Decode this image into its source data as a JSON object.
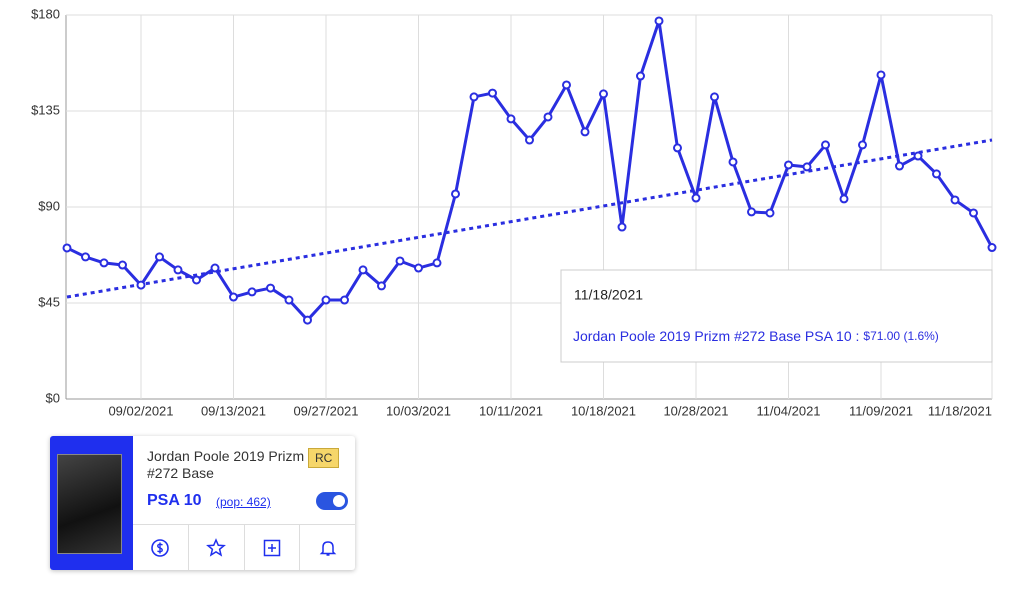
{
  "chart_data": {
    "type": "line",
    "categories": [
      null,
      null,
      null,
      null,
      "09/02/2021",
      null,
      null,
      null,
      null,
      "09/13/2021",
      null,
      null,
      null,
      null,
      "09/27/2021",
      null,
      null,
      null,
      null,
      "10/03/2021",
      null,
      null,
      null,
      null,
      "10/11/2021",
      null,
      null,
      null,
      null,
      "10/18/2021",
      null,
      null,
      null,
      null,
      "10/28/2021",
      null,
      null,
      null,
      null,
      "11/04/2021",
      null,
      null,
      null,
      null,
      "11/09/2021",
      null,
      null,
      null,
      null,
      null,
      "11/18/2021"
    ],
    "series": [
      {
        "name": "Jordan Poole 2019 Prizm #272 Base PSA 10",
        "color": "#2a2ee0",
        "values": [
          70.8,
          66.6,
          63.8,
          62.8,
          53.4,
          66.6,
          60.5,
          55.8,
          61.4,
          47.8,
          50.2,
          52,
          46.4,
          37,
          46.4,
          46.4,
          60.5,
          53,
          64.7,
          61.4,
          63.8,
          96.1,
          141.6,
          143.4,
          131.3,
          121.4,
          132.2,
          147.2,
          125.2,
          143,
          80.6,
          151.4,
          177.2,
          117.7,
          94.2,
          141.6,
          111.1,
          87.7,
          87.2,
          109.7,
          108.8,
          119.1,
          93.8,
          119.1,
          151.9,
          109.2,
          113.9,
          105.5,
          93.3,
          87.2,
          71
        ]
      }
    ],
    "trendline": {
      "start": 47.8,
      "end": 121.4,
      "color": "#2a2ee0"
    },
    "ylim": [
      0,
      180
    ],
    "yticks": [
      {
        "value": 0,
        "label": "$0"
      },
      {
        "value": 45,
        "label": "$45"
      },
      {
        "value": 90,
        "label": "$90"
      },
      {
        "value": 135,
        "label": "$135"
      },
      {
        "value": 180,
        "label": "$180"
      }
    ],
    "grid": true,
    "tooltip": {
      "date": "11/18/2021",
      "series": "Jordan Poole 2019 Prizm #272 Base PSA 10 :",
      "value_label": "$71.00 (1.6%)"
    }
  },
  "card": {
    "title": "Jordan Poole 2019 Prizm #272 Base",
    "badge": "RC",
    "grade": "PSA 10",
    "population": "(pop: 462)"
  }
}
